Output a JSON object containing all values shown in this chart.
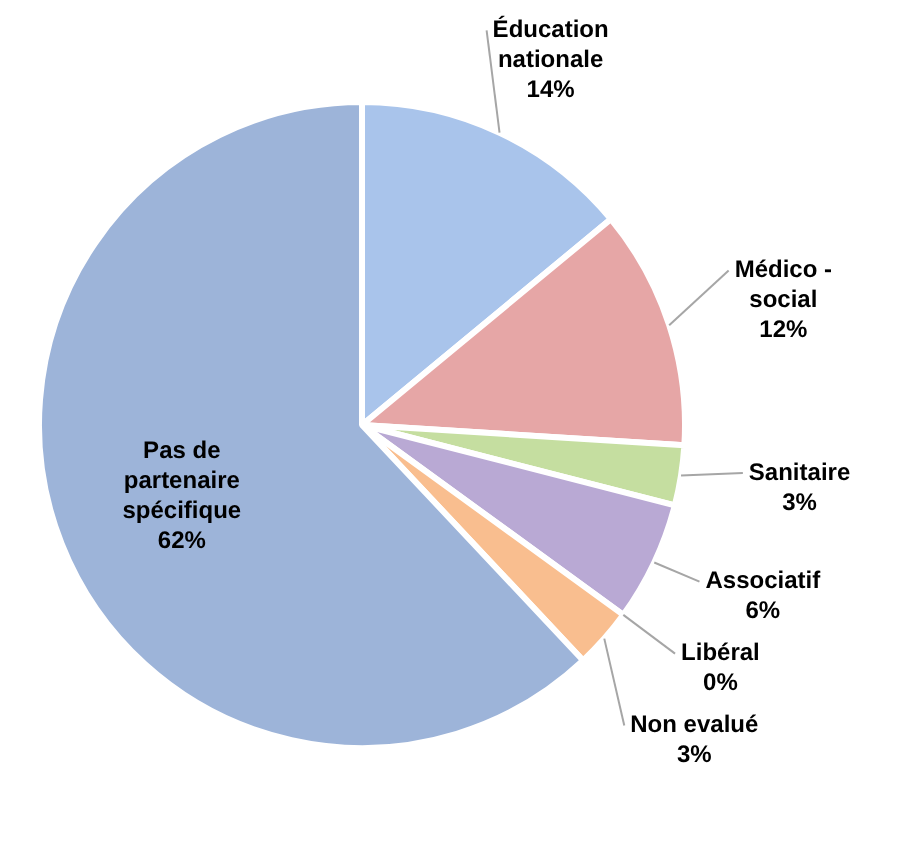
{
  "chart_data": {
    "type": "pie",
    "categories": [
      "Éducation nationale",
      "Médico - social",
      "Sanitaire",
      "Associatif",
      "Libéral",
      "Non evalué",
      "Pas de partenaire spécifique"
    ],
    "values": [
      14,
      12,
      3,
      6,
      0,
      3,
      62
    ],
    "value_labels": [
      "14%",
      "12%",
      "3%",
      "6%",
      "0%",
      "3%",
      "62%"
    ],
    "colors": [
      "#a9c4eb",
      "#e6a6a6",
      "#c5dea0",
      "#b9a9d4",
      "#f0a060",
      "#f9be8f",
      "#9db4d9"
    ],
    "legend": false
  }
}
